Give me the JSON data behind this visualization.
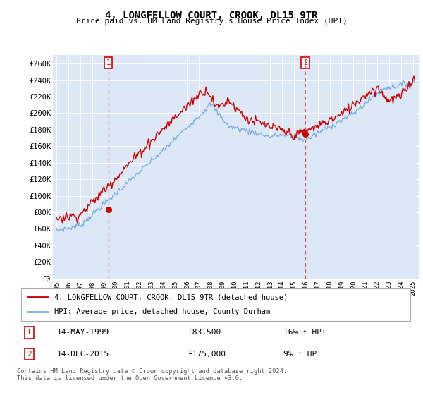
{
  "title": "4, LONGFELLOW COURT, CROOK, DL15 9TR",
  "subtitle": "Price paid vs. HM Land Registry's House Price Index (HPI)",
  "ylabel_ticks": [
    "£0",
    "£20K",
    "£40K",
    "£60K",
    "£80K",
    "£100K",
    "£120K",
    "£140K",
    "£160K",
    "£180K",
    "£200K",
    "£220K",
    "£240K",
    "£260K"
  ],
  "ylim": [
    0,
    270000
  ],
  "ytick_values": [
    0,
    20000,
    40000,
    60000,
    80000,
    100000,
    120000,
    140000,
    160000,
    180000,
    200000,
    220000,
    240000,
    260000
  ],
  "xlim_start": 1994.7,
  "xlim_end": 2025.5,
  "purchase1_x": 1999.37,
  "purchase1_y": 83500,
  "purchase2_x": 2015.95,
  "purchase2_y": 175000,
  "line_color_red": "#cc0000",
  "line_color_blue": "#7aaadd",
  "fill_color_blue": "#dce8f5",
  "vline_color": "#dd5555",
  "marker_box_color": "#cc0000",
  "plot_bg_color": "#dce8f5",
  "legend_label_red": "4, LONGFELLOW COURT, CROOK, DL15 9TR (detached house)",
  "legend_label_blue": "HPI: Average price, detached house, County Durham",
  "note1_date": "14-MAY-1999",
  "note1_price": "£83,500",
  "note1_hpi": "16% ↑ HPI",
  "note2_date": "14-DEC-2015",
  "note2_price": "£175,000",
  "note2_hpi": "9% ↑ HPI",
  "footer": "Contains HM Land Registry data © Crown copyright and database right 2024.\nThis data is licensed under the Open Government Licence v3.0."
}
